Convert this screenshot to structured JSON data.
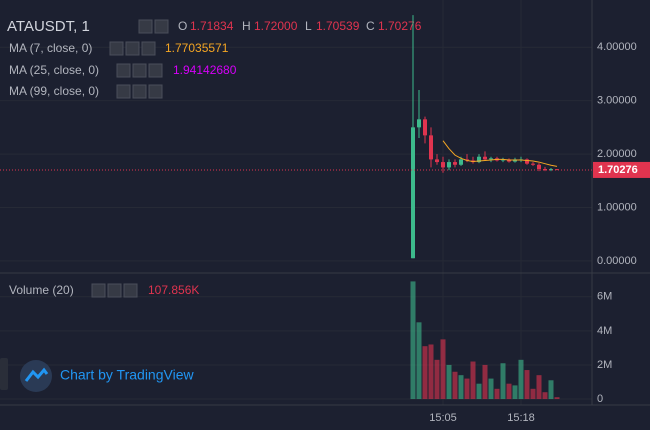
{
  "chart_data": {
    "type": "candlestick",
    "symbol": "ATAUSDT, 1",
    "ohlc_legend": [
      {
        "key": "O",
        "label": "1.71834"
      },
      {
        "key": "H",
        "label": "1.72000"
      },
      {
        "key": "L",
        "label": "1.70539"
      },
      {
        "key": "C",
        "label": "1.70276"
      }
    ],
    "indicators": [
      {
        "name": "MA (7, close, 0)",
        "value_label": "1.77035571",
        "color": "#f5a623"
      },
      {
        "name": "MA (25, close, 0)",
        "value_label": "1.94142680",
        "color": "#d500f9"
      },
      {
        "name": "MA (99, close, 0)"
      }
    ],
    "categories": [
      null,
      null,
      null,
      null,
      null,
      "15:05",
      null,
      null,
      null,
      null,
      null,
      null,
      null,
      null,
      null,
      null,
      null,
      null,
      "15:18",
      null,
      null,
      null,
      null,
      null,
      null
    ],
    "open": [
      0.05,
      2.5,
      2.65,
      2.35,
      1.9,
      1.85,
      1.75,
      1.85,
      1.8,
      1.9,
      1.88,
      1.85,
      1.95,
      1.9,
      1.92,
      1.88,
      1.9,
      1.86,
      1.9,
      1.9,
      1.82,
      1.8,
      1.72,
      1.7,
      1.71834
    ],
    "high": [
      4.6,
      3.2,
      2.7,
      2.5,
      2.0,
      1.95,
      1.9,
      1.9,
      1.95,
      2.0,
      1.95,
      2.0,
      2.05,
      1.95,
      1.95,
      1.93,
      1.92,
      1.93,
      1.95,
      1.92,
      1.85,
      1.83,
      1.76,
      1.74,
      1.72
    ],
    "low": [
      0.05,
      2.3,
      2.2,
      1.75,
      1.8,
      1.65,
      1.7,
      1.75,
      1.78,
      1.85,
      1.82,
      1.83,
      1.88,
      1.85,
      1.86,
      1.85,
      1.84,
      1.84,
      1.85,
      1.8,
      1.78,
      1.68,
      1.68,
      1.68,
      1.70539
    ],
    "close": [
      2.5,
      2.65,
      2.35,
      1.9,
      1.85,
      1.75,
      1.85,
      1.8,
      1.9,
      1.88,
      1.85,
      1.95,
      1.9,
      1.92,
      1.88,
      1.9,
      1.86,
      1.9,
      1.9,
      1.82,
      1.8,
      1.72,
      1.7,
      1.72,
      1.70276
    ],
    "up_color": "#3dba8c",
    "down_color": "#e0344f",
    "ma_line": {
      "values": [
        null,
        null,
        null,
        null,
        null,
        2.25,
        2.1,
        1.98,
        1.92,
        1.88,
        1.86,
        1.87,
        1.88,
        1.89,
        1.9,
        1.9,
        1.89,
        1.89,
        1.89,
        1.88,
        1.87,
        1.85,
        1.82,
        1.79,
        1.77
      ]
    },
    "ylim": [
      -0.17,
      4.79
    ],
    "yticks": [
      {
        "value": 0,
        "label": "0.00000"
      },
      {
        "value": 1,
        "label": "1.00000"
      },
      {
        "value": 2,
        "label": "2.00000"
      },
      {
        "value": 3,
        "label": "3.00000"
      },
      {
        "value": 4,
        "label": "4.00000"
      }
    ],
    "volume": {
      "name": "Volume (20)",
      "value_label": "107.856K",
      "values": [
        6900000,
        4500000,
        3100000,
        3200000,
        2300000,
        3500000,
        2000000,
        1600000,
        1400000,
        1200000,
        2200000,
        900000,
        2000000,
        1200000,
        600000,
        2100000,
        900000,
        800000,
        2300000,
        1700000,
        600000,
        1400000,
        400000,
        1100000,
        107856
      ],
      "ylim": [
        -350000,
        7100000
      ],
      "yticks": [
        0,
        {
          "value": 2000000,
          "label": "2M"
        },
        {
          "value": 4000000,
          "label": "4M"
        },
        {
          "value": 6000000,
          "label": "6M"
        }
      ]
    },
    "watermark": "Chart by TradingView"
  }
}
